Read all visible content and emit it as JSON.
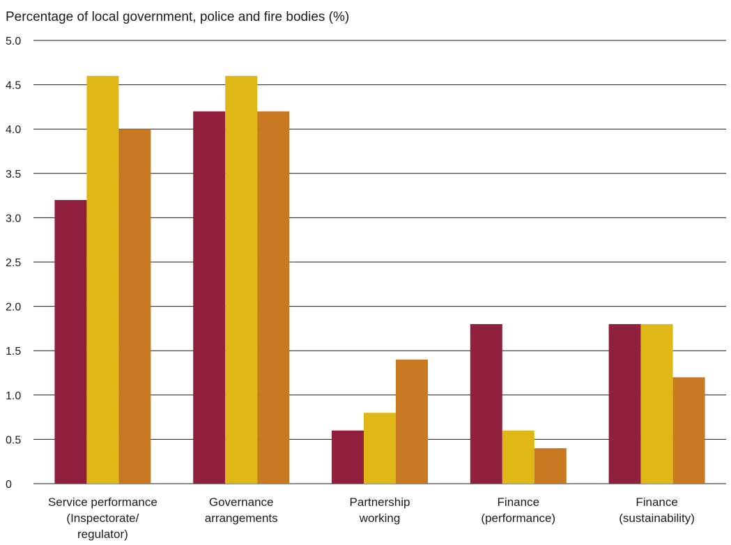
{
  "chart_data": {
    "type": "bar",
    "title": "",
    "xlabel": "",
    "ylabel": "Percentage of local government, police and fire bodies (%)",
    "ylim": [
      0,
      5.0
    ],
    "yticks": [
      "0",
      "0.5",
      "1.0",
      "1.5",
      "2.0",
      "2.5",
      "3.0",
      "3.5",
      "4.0",
      "4.5",
      "5.0"
    ],
    "grid": true,
    "legend": "none",
    "categories": [
      [
        "Service performance",
        "(Inspectorate/",
        "regulator)"
      ],
      [
        "Governance",
        "arrangements"
      ],
      [
        "Partnership",
        "working"
      ],
      [
        "Finance",
        "(performance)"
      ],
      [
        "Finance",
        "(sustainability)"
      ]
    ],
    "series": [
      {
        "color": "#911f3e",
        "values": [
          3.2,
          4.2,
          0.6,
          1.8,
          1.8
        ]
      },
      {
        "color": "#dfb716",
        "values": [
          4.6,
          4.6,
          0.8,
          0.6,
          1.8
        ]
      },
      {
        "color": "#c87820",
        "values": [
          4.0,
          4.2,
          1.4,
          0.4,
          1.2
        ]
      }
    ]
  }
}
